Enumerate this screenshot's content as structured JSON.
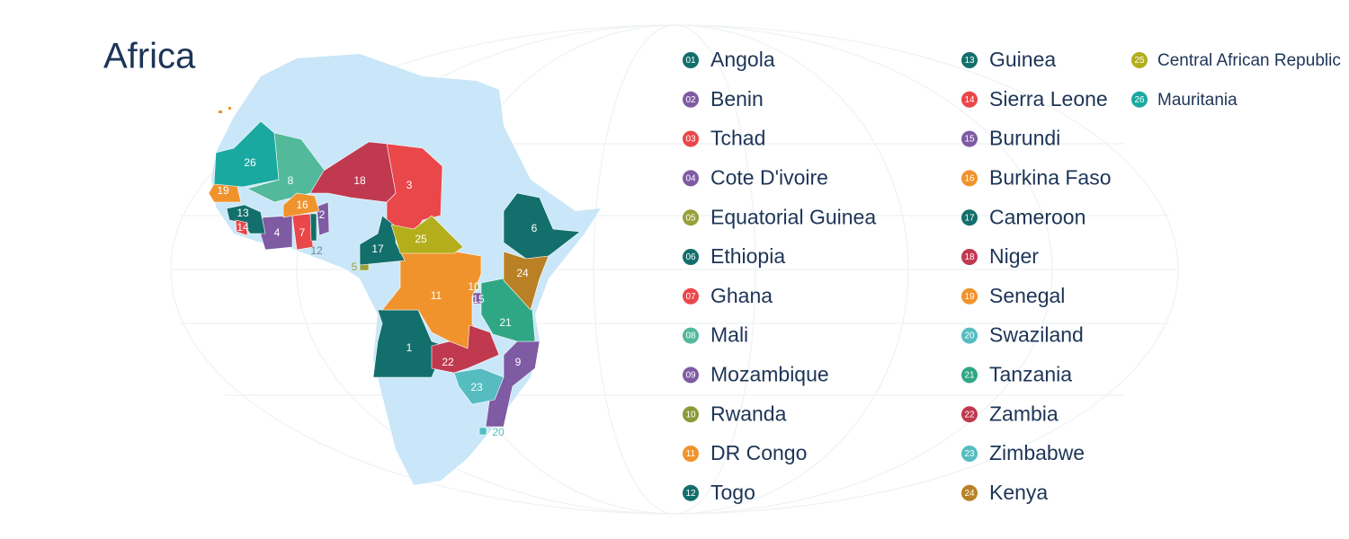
{
  "title": "Africa",
  "countries": [
    {
      "badge": "01",
      "map_label": "1",
      "name": "Angola",
      "color": "#136f6b"
    },
    {
      "badge": "02",
      "map_label": "2",
      "name": "Benin",
      "color": "#7e5ba3"
    },
    {
      "badge": "03",
      "map_label": "3",
      "name": "Tchad",
      "color": "#ea474b"
    },
    {
      "badge": "04",
      "map_label": "4",
      "name": "Cote D'ivoire",
      "color": "#7e5ba3"
    },
    {
      "badge": "05",
      "map_label": "5",
      "name": "Equatorial Guinea",
      "color": "#97a03a"
    },
    {
      "badge": "06",
      "map_label": "6",
      "name": "Ethiopia",
      "color": "#136f6b"
    },
    {
      "badge": "07",
      "map_label": "7",
      "name": "Ghana",
      "color": "#ea474b"
    },
    {
      "badge": "08",
      "map_label": "8",
      "name": "Mali",
      "color": "#52b99b"
    },
    {
      "badge": "09",
      "map_label": "9",
      "name": "Mozambique",
      "color": "#7e5ba3"
    },
    {
      "badge": "10",
      "map_label": "10",
      "name": "Rwanda",
      "color": "#8c9a38"
    },
    {
      "badge": "11",
      "map_label": "11",
      "name": "DR Congo",
      "color": "#f0932c"
    },
    {
      "badge": "12",
      "map_label": "12",
      "name": "Togo",
      "color": "#136f6b"
    },
    {
      "badge": "13",
      "map_label": "13",
      "name": "Guinea",
      "color": "#136f6b"
    },
    {
      "badge": "14",
      "map_label": "14",
      "name": "Sierra Leone",
      "color": "#ea474b"
    },
    {
      "badge": "15",
      "map_label": "15",
      "name": "Burundi",
      "color": "#7e5ba3"
    },
    {
      "badge": "16",
      "map_label": "16",
      "name": "Burkina Faso",
      "color": "#f0932c"
    },
    {
      "badge": "17",
      "map_label": "17",
      "name": "Cameroon",
      "color": "#136f6b"
    },
    {
      "badge": "18",
      "map_label": "18",
      "name": "Niger",
      "color": "#c0394f"
    },
    {
      "badge": "19",
      "map_label": "19",
      "name": "Senegal",
      "color": "#f0932c"
    },
    {
      "badge": "20",
      "map_label": "20",
      "name": "Swaziland",
      "color": "#56bcc0"
    },
    {
      "badge": "21",
      "map_label": "21",
      "name": "Tanzania",
      "color": "#2fa784"
    },
    {
      "badge": "22",
      "map_label": "22",
      "name": "Zambia",
      "color": "#c0394f"
    },
    {
      "badge": "23",
      "map_label": "23",
      "name": "Zimbabwe",
      "color": "#56bcc0"
    },
    {
      "badge": "24",
      "map_label": "24",
      "name": "Kenya",
      "color": "#b98025"
    },
    {
      "badge": "25",
      "map_label": "25",
      "name": "Central African Republic",
      "color": "#b4ae1c"
    },
    {
      "badge": "26",
      "map_label": "26",
      "name": "Mauritania",
      "color": "#1aa9a0"
    }
  ]
}
